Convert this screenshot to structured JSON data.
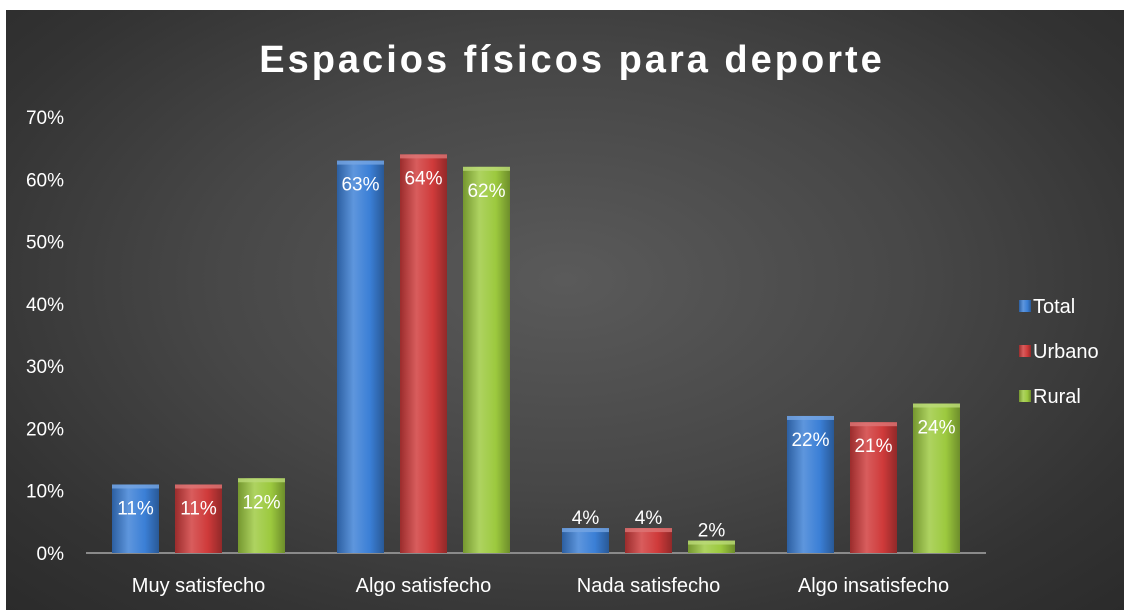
{
  "chart_data": {
    "type": "bar",
    "title": "Espacios físicos para deporte",
    "categories": [
      "Muy satisfecho",
      "Algo satisfecho",
      "Nada satisfecho",
      "Algo insatisfecho"
    ],
    "series": [
      {
        "name": "Total",
        "values": [
          11,
          63,
          4,
          22
        ],
        "labels": [
          "11%",
          "63%",
          "4%",
          "22%"
        ],
        "color": "#3b7fd6"
      },
      {
        "name": "Urbano",
        "values": [
          11,
          64,
          4,
          21
        ],
        "labels": [
          "11%",
          "64%",
          "4%",
          "21%"
        ],
        "color": "#cf3a3a"
      },
      {
        "name": "Rural",
        "values": [
          12,
          62,
          2,
          24
        ],
        "labels": [
          "12%",
          "62%",
          "2%",
          "24%"
        ],
        "color": "#9cc93e"
      }
    ],
    "yticks": [
      "0%",
      "10%",
      "20%",
      "30%",
      "40%",
      "50%",
      "60%",
      "70%"
    ],
    "ylim": [
      0,
      70
    ],
    "grid": false,
    "legend_position": "right",
    "background": "#444444"
  }
}
